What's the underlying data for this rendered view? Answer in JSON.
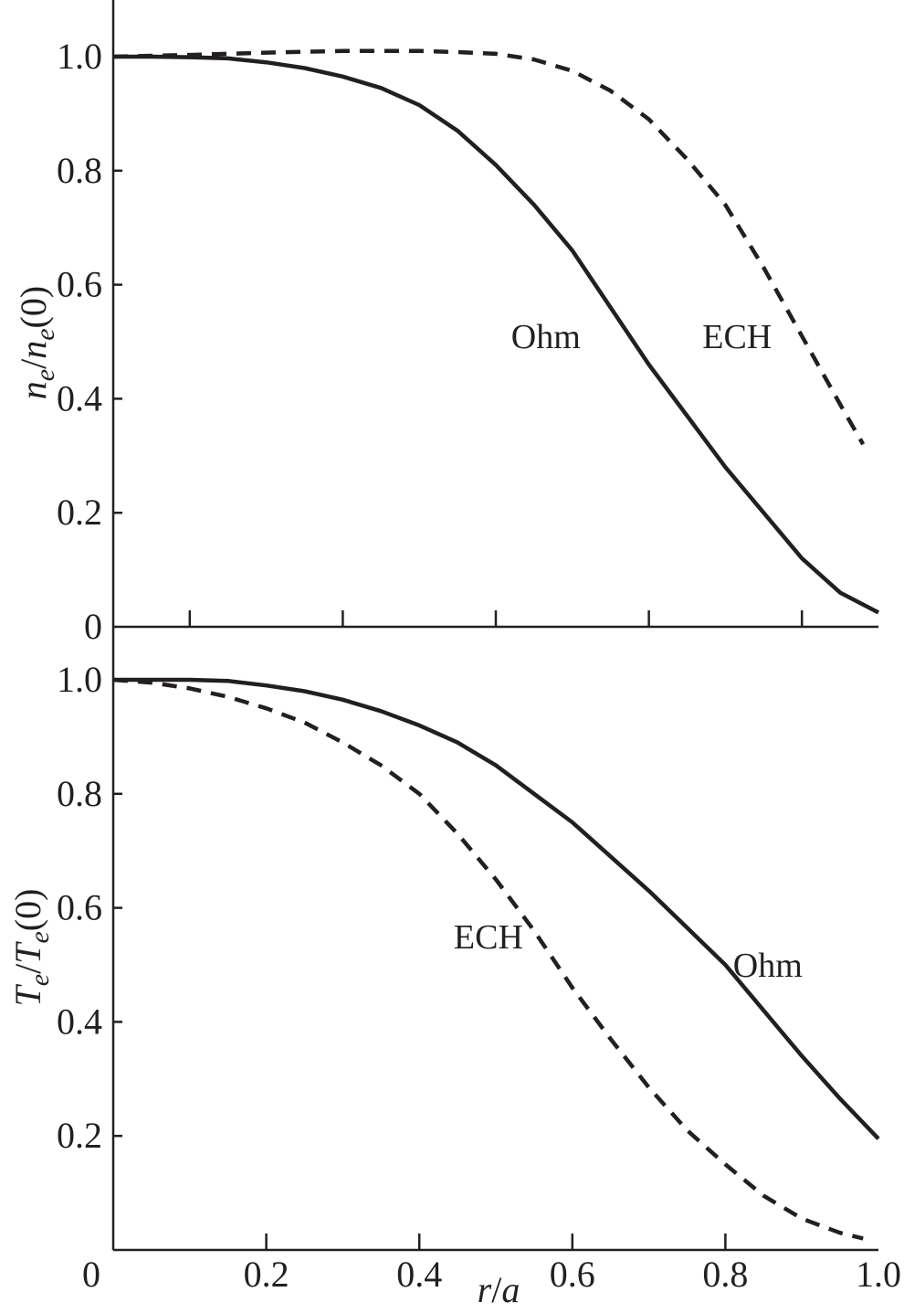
{
  "colors": {
    "ink": "#231f20",
    "background": "#ffffff"
  },
  "chart_data": [
    {
      "type": "line",
      "panel": "top",
      "ylabel": {
        "base": "n",
        "sub": "e",
        "slash": "/",
        "base2": "n",
        "sub2": "e",
        "tail": "(0)"
      },
      "xlim": [
        0,
        1.0
      ],
      "ylim": [
        0,
        1.1
      ],
      "yticks": [
        {
          "value": 0,
          "label": "0"
        },
        {
          "value": 0.2,
          "label": "0.2"
        },
        {
          "value": 0.4,
          "label": "0.4"
        },
        {
          "value": 0.6,
          "label": "0.6"
        },
        {
          "value": 0.8,
          "label": "0.8"
        },
        {
          "value": 1.0,
          "label": "1.0"
        }
      ],
      "xticks": [
        0.1,
        0.3,
        0.5,
        0.7,
        0.9
      ],
      "grid": false,
      "series": [
        {
          "name": "Ohm",
          "style": "solid",
          "label_at": [
            0.52,
            0.51
          ],
          "x": [
            0,
            0.05,
            0.1,
            0.15,
            0.2,
            0.25,
            0.3,
            0.35,
            0.4,
            0.45,
            0.5,
            0.55,
            0.6,
            0.65,
            0.7,
            0.75,
            0.8,
            0.85,
            0.9,
            0.95,
            1.0
          ],
          "y": [
            1.0,
            1.0,
            0.999,
            0.997,
            0.99,
            0.98,
            0.965,
            0.945,
            0.915,
            0.87,
            0.81,
            0.74,
            0.66,
            0.56,
            0.46,
            0.37,
            0.28,
            0.2,
            0.12,
            0.06,
            0.025
          ]
        },
        {
          "name": "ECH",
          "style": "dashed",
          "label_at": [
            0.77,
            0.51
          ],
          "x": [
            0,
            0.1,
            0.2,
            0.3,
            0.35,
            0.4,
            0.45,
            0.5,
            0.55,
            0.6,
            0.65,
            0.7,
            0.75,
            0.8,
            0.85,
            0.9,
            0.95,
            0.98
          ],
          "y": [
            1.0,
            1.003,
            1.007,
            1.01,
            1.01,
            1.01,
            1.008,
            1.005,
            0.995,
            0.975,
            0.94,
            0.89,
            0.82,
            0.74,
            0.63,
            0.51,
            0.39,
            0.32
          ]
        }
      ]
    },
    {
      "type": "line",
      "panel": "bottom",
      "xlabel": {
        "base": "r",
        "slash": "/",
        "base2": "a"
      },
      "ylabel": {
        "base": "T",
        "sub": "e",
        "slash": "/",
        "base2": "T",
        "sub2": "e",
        "tail": "(0)"
      },
      "xlim": [
        0,
        1.0
      ],
      "ylim": [
        0,
        1.1
      ],
      "xticks": [
        {
          "value": 0,
          "label": "0"
        },
        {
          "value": 0.2,
          "label": "0.2"
        },
        {
          "value": 0.4,
          "label": "0.4"
        },
        {
          "value": 0.6,
          "label": "0.6"
        },
        {
          "value": 0.8,
          "label": "0.8"
        },
        {
          "value": 1.0,
          "label": "1.0"
        }
      ],
      "yticks": [
        {
          "value": 0.2,
          "label": "0.2"
        },
        {
          "value": 0.4,
          "label": "0.4"
        },
        {
          "value": 0.6,
          "label": "0.6"
        },
        {
          "value": 0.8,
          "label": "0.8"
        },
        {
          "value": 1.0,
          "label": "1.0"
        }
      ],
      "grid": false,
      "series": [
        {
          "name": "Ohm",
          "style": "solid",
          "label_at": [
            0.81,
            0.5
          ],
          "x": [
            0,
            0.05,
            0.1,
            0.15,
            0.2,
            0.25,
            0.3,
            0.35,
            0.4,
            0.45,
            0.5,
            0.55,
            0.6,
            0.65,
            0.7,
            0.75,
            0.8,
            0.85,
            0.9,
            0.95,
            1.0
          ],
          "y": [
            1.0,
            1.0,
            1.0,
            0.998,
            0.99,
            0.98,
            0.965,
            0.945,
            0.92,
            0.89,
            0.85,
            0.8,
            0.75,
            0.69,
            0.63,
            0.565,
            0.5,
            0.42,
            0.34,
            0.265,
            0.195
          ]
        },
        {
          "name": "ECH",
          "style": "dashed",
          "label_at": [
            0.445,
            0.55
          ],
          "x": [
            0,
            0.05,
            0.1,
            0.15,
            0.2,
            0.25,
            0.3,
            0.35,
            0.4,
            0.45,
            0.5,
            0.55,
            0.6,
            0.65,
            0.7,
            0.75,
            0.8,
            0.85,
            0.9,
            0.95,
            0.98
          ],
          "y": [
            1.0,
            0.995,
            0.985,
            0.97,
            0.95,
            0.925,
            0.89,
            0.85,
            0.8,
            0.73,
            0.65,
            0.56,
            0.46,
            0.37,
            0.285,
            0.21,
            0.15,
            0.095,
            0.055,
            0.03,
            0.02
          ]
        }
      ]
    }
  ]
}
